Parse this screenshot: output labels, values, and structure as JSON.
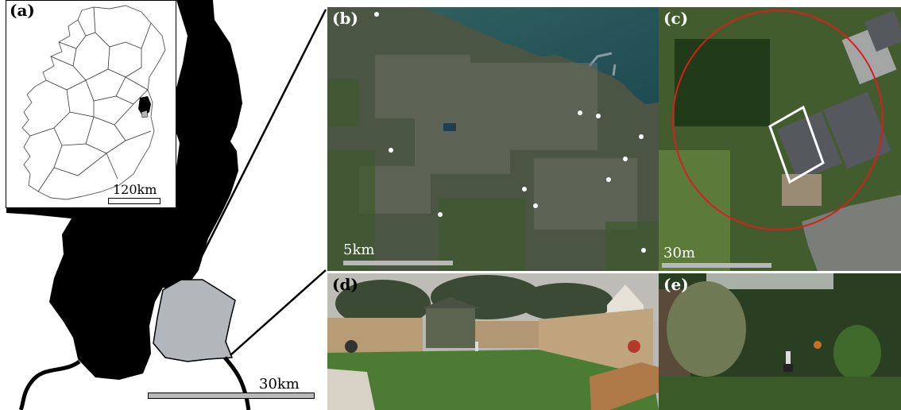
{
  "panels": {
    "a": {
      "label": "(a)",
      "scale_label": "30km"
    },
    "a_inset": {
      "scale_label": "120km"
    },
    "b": {
      "label": "(b)",
      "scale_label": "5km"
    },
    "c": {
      "label": "(c)",
      "scale_label": "30m"
    },
    "d": {
      "label": "(d)"
    },
    "e": {
      "label": "(e)"
    }
  },
  "colors": {
    "county_fill": "#000000",
    "study_area_fill": "#b3b6ba",
    "study_circle": "#d4201e",
    "plot_outline": "#ffffff",
    "scale_bar": "#b8b8b8"
  }
}
